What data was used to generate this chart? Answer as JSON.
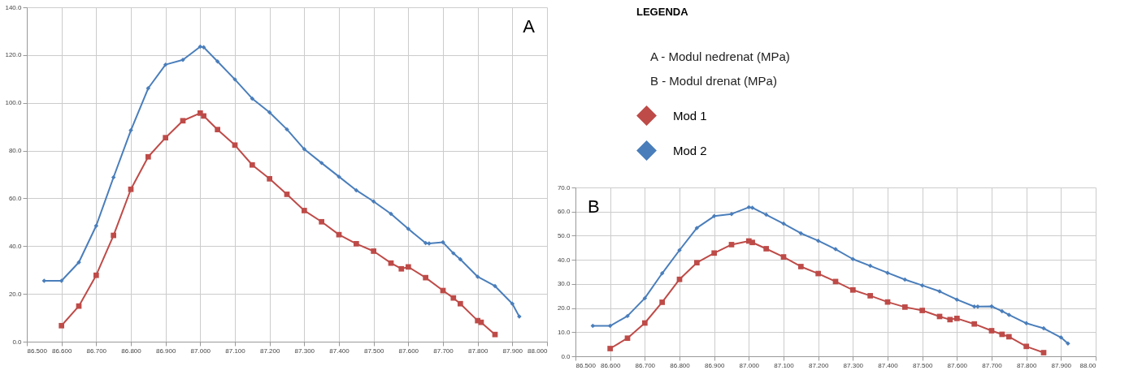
{
  "chart_data": [
    {
      "type": "line",
      "title": "A",
      "legend_title": "LEGENDA",
      "legend": "right",
      "annotations": [
        "A - Modul nedrenat (MPa)",
        "B - Modul drenat (MPa)"
      ],
      "xlim": [
        86.5,
        88.0
      ],
      "xticks": [
        {
          "value": 86.5,
          "label": "86.500"
        },
        {
          "value": 86.6,
          "label": "86.600"
        },
        {
          "value": 86.7,
          "label": "86.700"
        },
        {
          "value": 86.8,
          "label": "86.800"
        },
        {
          "value": 86.9,
          "label": "86.900"
        },
        {
          "value": 87.0,
          "label": "87.000"
        },
        {
          "value": 87.1,
          "label": "87.100"
        },
        {
          "value": 87.2,
          "label": "87.200"
        },
        {
          "value": 87.3,
          "label": "87.300"
        },
        {
          "value": 87.4,
          "label": "87.400"
        },
        {
          "value": 87.5,
          "label": "87.500"
        },
        {
          "value": 87.6,
          "label": "87.600"
        },
        {
          "value": 87.7,
          "label": "87.700"
        },
        {
          "value": 87.8,
          "label": "87.800"
        },
        {
          "value": 87.9,
          "label": "87.900"
        },
        {
          "value": 88.0,
          "label": "88.000"
        }
      ],
      "ylim": [
        0,
        140
      ],
      "yticks": [
        {
          "value": 0,
          "label": "0.0"
        },
        {
          "value": 20,
          "label": "20.0"
        },
        {
          "value": 40,
          "label": "40.0"
        },
        {
          "value": 60,
          "label": "60.0"
        },
        {
          "value": 80,
          "label": "80.0"
        },
        {
          "value": 100,
          "label": "100.0"
        },
        {
          "value": 120,
          "label": "120.0"
        },
        {
          "value": 140,
          "label": "140.0"
        }
      ],
      "grid": true,
      "series": [
        {
          "name": "Mod 1",
          "color": "#be4b48",
          "marker": "square",
          "x": [
            86.6,
            86.65,
            86.7,
            86.75,
            86.8,
            86.85,
            86.9,
            86.95,
            87.0,
            87.01,
            87.05,
            87.1,
            87.15,
            87.2,
            87.25,
            87.3,
            87.35,
            87.4,
            87.45,
            87.5,
            87.55,
            87.58,
            87.6,
            87.65,
            87.7,
            87.73,
            87.75,
            87.8,
            87.81,
            87.85
          ],
          "values": [
            6.7,
            14.9,
            27.8,
            44.5,
            63.8,
            77.4,
            85.4,
            92.5,
            95.7,
            94.5,
            88.8,
            82.3,
            74.0,
            68.2,
            61.7,
            54.9,
            50.2,
            44.8,
            41.0,
            37.9,
            32.9,
            30.5,
            31.3,
            26.8,
            21.4,
            18.3,
            15.9,
            8.8,
            8.1,
            3.0
          ]
        },
        {
          "name": "Mod 2",
          "color": "#4a7ebb",
          "marker": "diamond",
          "x": [
            86.55,
            86.6,
            86.65,
            86.7,
            86.75,
            86.8,
            86.85,
            86.9,
            86.95,
            87.0,
            87.01,
            87.05,
            87.1,
            87.15,
            87.2,
            87.25,
            87.3,
            87.35,
            87.4,
            87.45,
            87.5,
            87.55,
            87.6,
            87.65,
            87.66,
            87.7,
            87.73,
            87.75,
            87.8,
            87.85,
            87.9,
            87.92
          ],
          "values": [
            25.5,
            25.5,
            33.2,
            48.5,
            68.8,
            88.5,
            106.1,
            116.0,
            118.0,
            123.5,
            123.3,
            117.3,
            109.8,
            101.8,
            96.0,
            88.9,
            80.6,
            74.8,
            69.1,
            63.4,
            58.7,
            53.5,
            47.2,
            41.3,
            41.1,
            41.6,
            37.0,
            34.5,
            27.2,
            23.3,
            15.9,
            10.5
          ]
        }
      ]
    },
    {
      "type": "line",
      "title": "B",
      "xlim": [
        86.5,
        88.0
      ],
      "xticks": [
        {
          "value": 86.5,
          "label": "86.500"
        },
        {
          "value": 86.6,
          "label": "86.600"
        },
        {
          "value": 86.7,
          "label": "86.700"
        },
        {
          "value": 86.8,
          "label": "86.800"
        },
        {
          "value": 86.9,
          "label": "86.900"
        },
        {
          "value": 87.0,
          "label": "87.000"
        },
        {
          "value": 87.1,
          "label": "87.100"
        },
        {
          "value": 87.2,
          "label": "87.200"
        },
        {
          "value": 87.3,
          "label": "87.300"
        },
        {
          "value": 87.4,
          "label": "87.400"
        },
        {
          "value": 87.5,
          "label": "87.500"
        },
        {
          "value": 87.6,
          "label": "87.600"
        },
        {
          "value": 87.7,
          "label": "87.700"
        },
        {
          "value": 87.8,
          "label": "87.800"
        },
        {
          "value": 87.9,
          "label": "87.900"
        },
        {
          "value": 88.0,
          "label": "88.00"
        }
      ],
      "ylim": [
        0,
        70
      ],
      "yticks": [
        {
          "value": 0,
          "label": "0.0"
        },
        {
          "value": 10,
          "label": "10.0"
        },
        {
          "value": 20,
          "label": "20.0"
        },
        {
          "value": 30,
          "label": "30.0"
        },
        {
          "value": 40,
          "label": "40.0"
        },
        {
          "value": 50,
          "label": "50.0"
        },
        {
          "value": 60,
          "label": "60.0"
        },
        {
          "value": 70,
          "label": "70.0"
        }
      ],
      "grid": true,
      "series": [
        {
          "color": "#be4b48",
          "marker": "square",
          "x": [
            86.6,
            86.65,
            86.7,
            86.75,
            86.8,
            86.85,
            86.9,
            86.95,
            87.0,
            87.01,
            87.05,
            87.1,
            87.15,
            87.2,
            87.25,
            87.3,
            87.35,
            87.4,
            87.45,
            87.5,
            87.55,
            87.58,
            87.6,
            87.65,
            87.7,
            87.73,
            87.75,
            87.8,
            87.85
          ],
          "values": [
            3.2,
            7.5,
            13.8,
            22.4,
            31.9,
            38.8,
            42.8,
            46.3,
            47.8,
            47.2,
            44.6,
            41.2,
            37.2,
            34.3,
            31.0,
            27.5,
            25.1,
            22.5,
            20.4,
            19.0,
            16.5,
            15.2,
            15.7,
            13.4,
            10.6,
            9.1,
            8.1,
            4.1,
            1.5
          ]
        },
        {
          "color": "#4a7ebb",
          "marker": "diamond",
          "x": [
            86.55,
            86.6,
            86.65,
            86.7,
            86.75,
            86.8,
            86.85,
            86.9,
            86.95,
            87.0,
            87.01,
            87.05,
            87.1,
            87.15,
            87.2,
            87.25,
            87.3,
            87.35,
            87.4,
            87.45,
            87.5,
            87.55,
            87.6,
            87.65,
            87.66,
            87.7,
            87.73,
            87.75,
            87.8,
            87.85,
            87.9,
            87.92
          ],
          "values": [
            12.6,
            12.6,
            16.7,
            24.1,
            34.4,
            44.0,
            53.2,
            58.1,
            59.0,
            61.8,
            61.6,
            58.7,
            55.0,
            51.0,
            47.9,
            44.4,
            40.3,
            37.5,
            34.6,
            31.8,
            29.4,
            26.9,
            23.5,
            20.6,
            20.6,
            20.7,
            18.7,
            17.2,
            13.7,
            11.6,
            7.8,
            5.3
          ]
        }
      ]
    }
  ]
}
